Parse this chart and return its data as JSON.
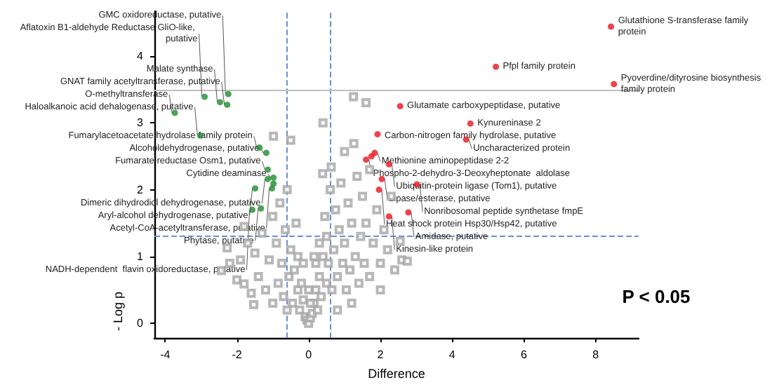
{
  "chart_data": {
    "type": "scatter",
    "xlabel": "Difference",
    "ylabel": "- Log p",
    "xlim": [
      -4.3,
      9.2
    ],
    "xticks": [
      -4,
      -2,
      0,
      2,
      4,
      6,
      8
    ],
    "ylim": [
      -0.22,
      4.67
    ],
    "yticks": [
      0,
      1,
      2,
      3,
      4
    ],
    "grid": false,
    "series": [
      {
        "marker": "square",
        "color": "#a6a6a6",
        "x": [
          -2.27,
          -2.43,
          -2.0,
          -1.8,
          -1.53,
          -1.9,
          -1.7,
          -1.6,
          -1.5,
          -1.4,
          -1.3,
          -1.2,
          -1.1,
          -1.0,
          -1.0,
          -0.98,
          -0.9,
          -0.85,
          -0.8,
          -0.75,
          -0.7,
          -0.65,
          -0.6,
          -0.55,
          -0.5,
          -0.5,
          -0.45,
          -0.4,
          -0.35,
          -0.3,
          -0.3,
          -0.25,
          -0.2,
          -0.15,
          -0.1,
          -0.05,
          0,
          0.05,
          0.1,
          0.15,
          0.2,
          0.2,
          0.25,
          0.3,
          0.3,
          0.35,
          0.39,
          0.4,
          0.4,
          0.45,
          0.5,
          0.5,
          0.55,
          0.6,
          0.63,
          0.65,
          0.7,
          0.75,
          0.8,
          0.85,
          0.9,
          0.95,
          1.0,
          1.0,
          1.05,
          1.1,
          1.15,
          1.2,
          1.25,
          1.26,
          1.3,
          1.35,
          1.4,
          1.45,
          1.5,
          1.55,
          1.6,
          1.6,
          1.7,
          1.7,
          1.8,
          1.9,
          2.0,
          2.1,
          2.2,
          2.3,
          2.4,
          2.55,
          2.6,
          2.75,
          2.0,
          1.2,
          0.8,
          -0.6,
          -1.8,
          -2.2,
          0.15,
          -0.15,
          0.0,
          0.05
        ],
        "values": [
          1.13,
          0.79,
          0.65,
          0.59,
          0.28,
          0.95,
          1.2,
          0.45,
          1.05,
          0.7,
          1.35,
          0.5,
          0.95,
          1.6,
          0.3,
          2.8,
          1.2,
          0.6,
          1.8,
          0.9,
          0.4,
          1.4,
          2.0,
          0.7,
          2.74,
          1.1,
          0.3,
          0.8,
          1.5,
          0.5,
          1.0,
          0.2,
          0.6,
          0.35,
          0.1,
          0.05,
          0,
          0.08,
          0.15,
          0.3,
          0.5,
          0.9,
          0.2,
          0.7,
          1.2,
          0.4,
          2.24,
          3.0,
          1.0,
          1.6,
          0.6,
          1.3,
          0.9,
          2.0,
          2.34,
          0.5,
          1.1,
          1.7,
          0.7,
          1.4,
          2.1,
          0.9,
          2.57,
          1.2,
          0.5,
          1.8,
          0.8,
          1.5,
          3.39,
          2.69,
          1.0,
          2.2,
          0.6,
          1.3,
          1.9,
          0.9,
          3.3,
          1.5,
          2.3,
          0.7,
          1.2,
          1.7,
          0.9,
          1.4,
          1.1,
          1.9,
          0.8,
          1.23,
          0.95,
          0.93,
          0.5,
          0.3,
          0.2,
          0.2,
          1.45,
          0.9,
          1.0,
          0.9,
          0.5,
          0.3
        ]
      },
      {
        "marker": "circle",
        "color": "#1e8c2e",
        "x": [
          -2.9,
          -2.24,
          -2.47,
          -2.27,
          -3.73,
          -3.02,
          -1.37,
          -1.18,
          -0.98,
          -1.14,
          -1.14,
          -0.98,
          -1.49,
          -1.02,
          -1.57,
          -1.33
        ],
        "values": [
          3.39,
          3.43,
          3.31,
          3.27,
          3.15,
          2.81,
          2.63,
          2.55,
          2.18,
          2.3,
          2.16,
          2.09,
          2.02,
          2.02,
          1.7,
          1.72
        ]
      },
      {
        "marker": "circle",
        "color": "#e8141e",
        "x": [
          8.43,
          5.22,
          8.51,
          1.6,
          1.75,
          2.55,
          4.51,
          1.92,
          4.39,
          1.84,
          2.24,
          2.04,
          3.02,
          1.96,
          2.78,
          2.24
        ],
        "values": [
          4.44,
          3.84,
          3.58,
          2.45,
          2.5,
          3.25,
          2.99,
          2.83,
          2.75,
          2.55,
          2.38,
          2.16,
          2.08,
          2.0,
          1.66,
          1.6
        ]
      }
    ],
    "ref_lines": [
      {
        "axis": "x",
        "value": -0.6,
        "color": "#6b8fd6",
        "line_style": "dashed"
      },
      {
        "axis": "x",
        "value": 0.6,
        "color": "#6b8fd6",
        "line_style": "dashed"
      },
      {
        "axis": "y",
        "value": 1.3,
        "color": "#6b8fd6",
        "line_style": "dashed"
      },
      {
        "axis": "y",
        "value": 3.5,
        "color": "#bfbfbf",
        "line_style": "solid"
      }
    ],
    "annotations": [
      {
        "text": "Aflatoxin B1-aldehyde Reductase GliO-like, putative",
        "x": -2.9,
        "y": 3.39
      },
      {
        "text": "GMC oxidoreductase, putative",
        "x": -2.24,
        "y": 3.43
      },
      {
        "text": "Malate synthase",
        "x": -2.47,
        "y": 3.31
      },
      {
        "text": "GNAT family acetyltransferase, putative",
        "x": -2.27,
        "y": 3.27
      },
      {
        "text": "O-methyltransferase",
        "x": -3.73,
        "y": 3.15
      },
      {
        "text": "Haloalkanoic acid dehalogenase, putative",
        "x": -3.02,
        "y": 2.81
      },
      {
        "text": "Fumarylacetoacetate hydrolase family protein",
        "x": -1.37,
        "y": 2.63
      },
      {
        "text": "Alcoholdehydrogenase, putative",
        "x": -1.18,
        "y": 2.55
      },
      {
        "text": "Cytidine deaminase",
        "x": -0.98,
        "y": 2.18
      },
      {
        "text": "Fumarate reductase Osm1, putative",
        "x": -1.14,
        "y": 2.3
      },
      {
        "text": "Dimeric dihydrodiol dehydrogenase, putative",
        "x": -1.14,
        "y": 2.16
      },
      {
        "text": "Aryl-alcohol dehydrogenase, putative",
        "x": -1.49,
        "y": 2.02
      },
      {
        "text": "Acetyl-CoA-acetyltransferase, putative",
        "x": -1.02,
        "y": 2.02
      },
      {
        "text": "NADH-dependent  flavin oxidoreductase, putative",
        "x": -1.57,
        "y": 1.7
      },
      {
        "text": "Phytase, putative",
        "x": -1.33,
        "y": 1.72
      },
      {
        "text": "Glutathione S-transferase family protein",
        "x": 8.43,
        "y": 4.44
      },
      {
        "text": "Pfpl family protein",
        "x": 5.22,
        "y": 3.84
      },
      {
        "text": "Pyoverdine/dityrosine biosynthesis family protein",
        "x": 8.51,
        "y": 3.58
      },
      {
        "text": "Phospho-2-dehydro-3-Deoxyheptonate  aldolase",
        "x": 1.6,
        "y": 2.45
      },
      {
        "text": "Glutamate carboxypeptidase, putative",
        "x": 2.55,
        "y": 3.25
      },
      {
        "text": "Kynureninase 2",
        "x": 4.51,
        "y": 2.99
      },
      {
        "text": "Carbon-nitrogen family hydrolase, putative",
        "x": 1.92,
        "y": 2.83
      },
      {
        "text": "Uncharacterized protein",
        "x": 4.39,
        "y": 2.75
      },
      {
        "text": "Methionine aminopeptidase 2-2",
        "x": 1.84,
        "y": 2.55
      },
      {
        "text": "Ubiquitin-protein ligase (Tom1), putative",
        "x": 2.24,
        "y": 2.38
      },
      {
        "text": "Lipase/esterase, putative",
        "x": 2.04,
        "y": 2.16
      },
      {
        "text": "Nonribosomal peptide synthetase fmpE",
        "x": 3.02,
        "y": 2.08
      },
      {
        "text": "Heat shock protein Hsp30/Hsp42, putative",
        "x": 1.96,
        "y": 2.0
      },
      {
        "text": "Amidase, putative",
        "x": 2.78,
        "y": 1.66
      },
      {
        "text": "Kinesin-like protein",
        "x": 2.24,
        "y": 1.6
      },
      "P < 0.05"
    ]
  }
}
